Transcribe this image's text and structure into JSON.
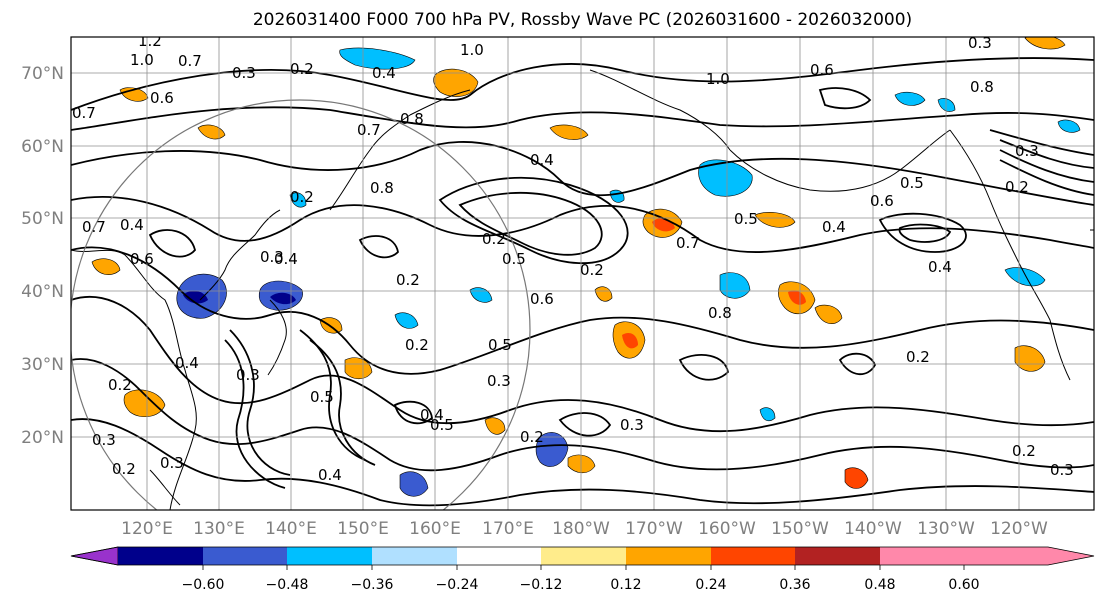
{
  "title": "2026031400 F000 700 hPa PV, Rossby Wave PC (2026031600 - 2026032000)",
  "lat_labels": [
    "70°N",
    "60°N",
    "50°N",
    "40°N",
    "30°N",
    "20°N"
  ],
  "lon_labels": [
    "120°E",
    "130°E",
    "140°E",
    "150°E",
    "160°E",
    "170°E",
    "180°W",
    "170°W",
    "160°W",
    "150°W",
    "140°W",
    "130°W",
    "120°W"
  ],
  "colorbar": {
    "ticks": [
      "−0.60",
      "−0.48",
      "−0.36",
      "−0.24",
      "−0.12",
      "0.12",
      "0.24",
      "0.36",
      "0.48",
      "0.60"
    ],
    "colors": [
      "#9932cc",
      "#00008b",
      "#3a5bd0",
      "#00bfff",
      "#b0e0ff",
      "#ffffff",
      "#ffec8b",
      "#ffa500",
      "#ff4500",
      "#b22222",
      "#ff88aa"
    ]
  },
  "contour_labels": [
    "1.2",
    "1.0",
    "0.7",
    "0.3",
    "0.2",
    "0.4",
    "1.0",
    "0.6",
    "0.7",
    "0.8",
    "0.6",
    "0.7",
    "0.8",
    "0.4",
    "0.8",
    "1.0",
    "0.3",
    "0.2",
    "0.3",
    "0.5",
    "0.6",
    "0.2",
    "0.7",
    "0.5",
    "0.4",
    "0.6",
    "0.5",
    "0.2",
    "0.8",
    "0.6",
    "0.3",
    "0.4",
    "0.2",
    "0.5",
    "0.3",
    "0.2",
    "0.7",
    "0.4",
    "0.5",
    "0.3",
    "0.2",
    "0.4",
    "0.4",
    "0.5",
    "0.3",
    "0.2",
    "0.4",
    "0.2",
    "0.3",
    "0.2",
    "0.3",
    "0.2",
    "0.2",
    "0.4",
    "0.3"
  ]
}
